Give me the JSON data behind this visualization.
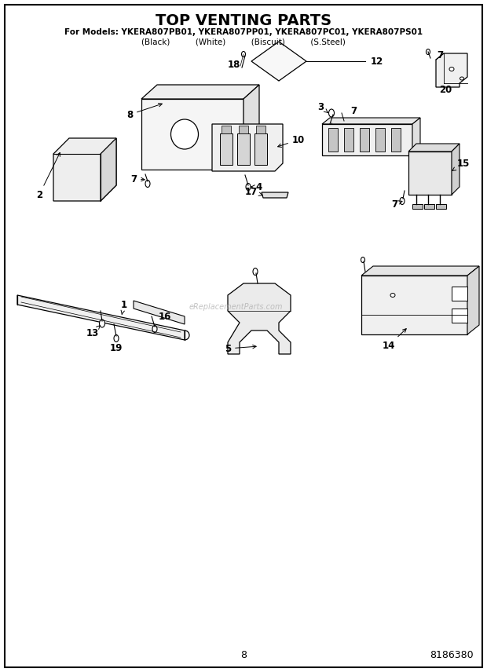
{
  "title": "TOP VENTING PARTS",
  "subtitle1": "For Models: YKERA807PB01, YKERA807PP01, YKERA807PC01, YKERA807PS01",
  "subtitle2": "(Black)          (White)          (Biscuit)          (S.Steel)",
  "page_number": "8",
  "part_number": "8186380",
  "background_color": "#ffffff",
  "border_color": "#000000",
  "watermark": "eReplacementParts.com",
  "title_fontsize": 14,
  "subtitle_fontsize": 7.5,
  "label_fontsize": 8.5
}
